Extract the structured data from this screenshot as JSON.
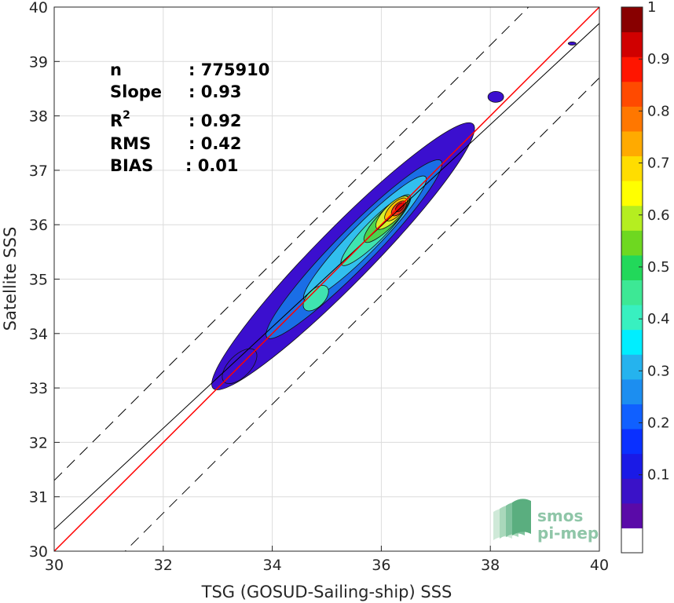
{
  "chart_data": {
    "type": "density-contour-scatter",
    "xlabel": "TSG (GOSUD-Sailing-ship) SSS",
    "ylabel": "Satellite SSS",
    "xlim": [
      30,
      40
    ],
    "ylim": [
      30,
      40
    ],
    "xticks": [
      "30",
      "32",
      "34",
      "36",
      "38",
      "40"
    ],
    "yticks": [
      "30",
      "31",
      "32",
      "33",
      "34",
      "35",
      "36",
      "37",
      "38",
      "39",
      "40"
    ],
    "grid": true,
    "stats": [
      {
        "key": "n",
        "value": ": 775910"
      },
      {
        "key": "Slope",
        "value": ": 0.93"
      },
      {
        "key": "R",
        "sup": "2",
        "value": ": 0.92"
      },
      {
        "key": "RMS",
        "value": ": 0.42"
      },
      {
        "key": "BIAS",
        "value": ": 0.01"
      }
    ],
    "lines": {
      "identity": {
        "slope": 1,
        "intercept": 0,
        "color": "#ff0000"
      },
      "regression": {
        "slope": 0.93,
        "intercept": 2.5,
        "color": "#000000"
      },
      "upper_bound": {
        "slope": 1,
        "intercept": 1.3,
        "style": "dashed"
      },
      "lower_bound": {
        "slope": 1,
        "intercept": -1.3,
        "style": "dashed"
      }
    },
    "density_levels": [
      {
        "level": 0.05,
        "color": "#3b0fcf"
      },
      {
        "level": 0.25,
        "color": "#1a6ee6"
      },
      {
        "level": 0.35,
        "color": "#32bfee"
      },
      {
        "level": 0.45,
        "color": "#3fe3b0"
      },
      {
        "level": 0.55,
        "color": "#4dd24d"
      },
      {
        "level": 0.65,
        "color": "#d8ef2a"
      },
      {
        "level": 0.75,
        "color": "#ffbb00"
      },
      {
        "level": 0.85,
        "color": "#f33a1a"
      },
      {
        "level": 0.95,
        "color": "#c80a0a"
      }
    ],
    "colorbar": {
      "ticks": [
        "0.1",
        "0.2",
        "0.3",
        "0.4",
        "0.5",
        "0.6",
        "0.7",
        "0.8",
        "0.9",
        "1"
      ],
      "colors": [
        "#ffffff",
        "#5a0aa8",
        "#3a12c8",
        "#1a1ae6",
        "#0a30ff",
        "#1060ff",
        "#1c8ef0",
        "#25b3ee",
        "#00eeff",
        "#38f0c0",
        "#3de895",
        "#22d85a",
        "#6ed820",
        "#b5ee20",
        "#ffff00",
        "#ffdd00",
        "#ffaa00",
        "#ff7700",
        "#ff4a00",
        "#ff1500",
        "#d00000",
        "#880000"
      ]
    },
    "logo": {
      "line1": "smos",
      "line2": "pi-mep"
    }
  }
}
